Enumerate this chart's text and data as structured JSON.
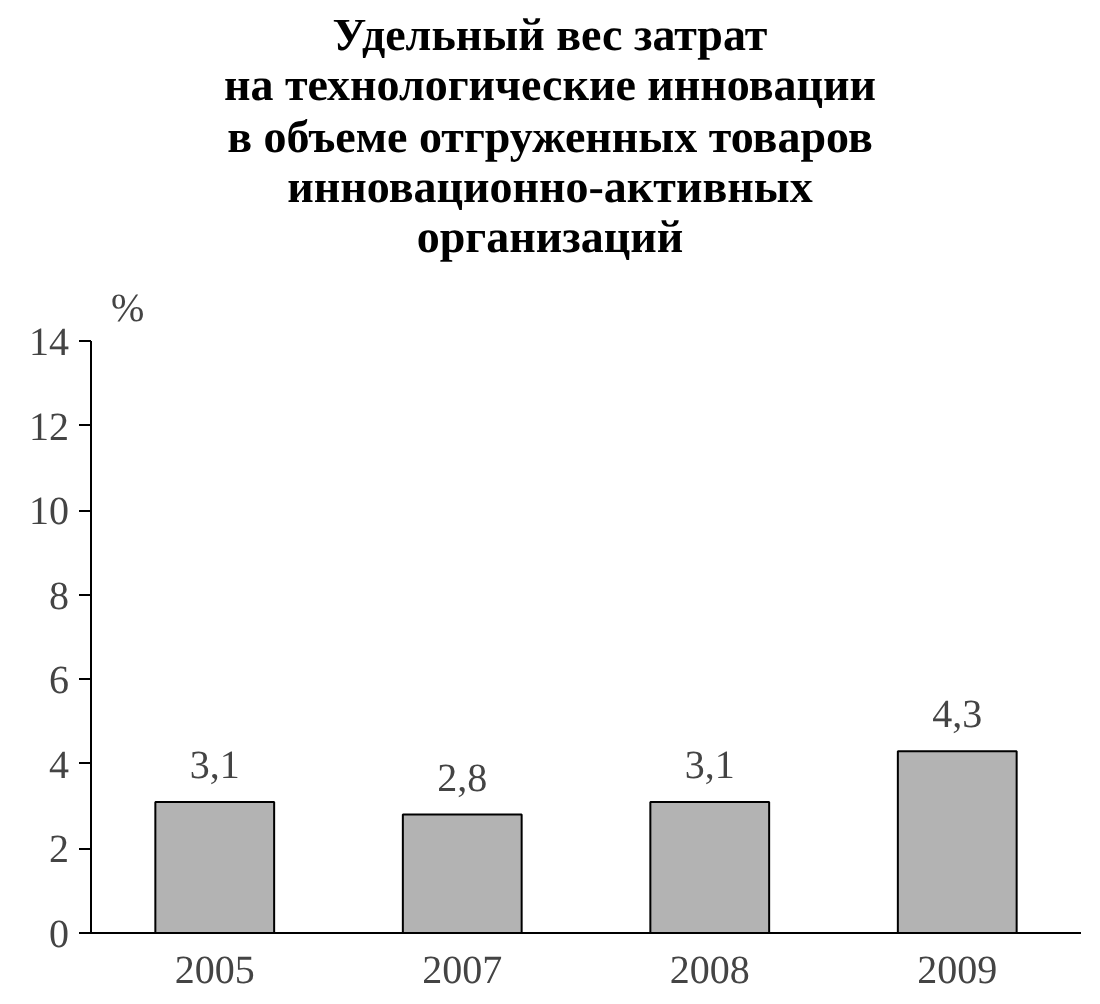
{
  "chart_data": {
    "type": "bar",
    "title": "Удельный вес затрат\nна технологические инновации\nв объеме отгруженных товаров\nинновационно-активных\nорганизаций",
    "ylabel": "%",
    "categories": [
      "2005",
      "2007",
      "2008",
      "2009"
    ],
    "values": [
      3.1,
      2.8,
      3.1,
      4.3
    ],
    "color": "#b3b3b3",
    "value_labels": [
      "3,1",
      "2,8",
      "3,1",
      "4,3"
    ],
    "ylim": [
      0,
      14
    ],
    "yticks": [
      0,
      2,
      4,
      6,
      8,
      10,
      12,
      14
    ],
    "grid": false
  }
}
